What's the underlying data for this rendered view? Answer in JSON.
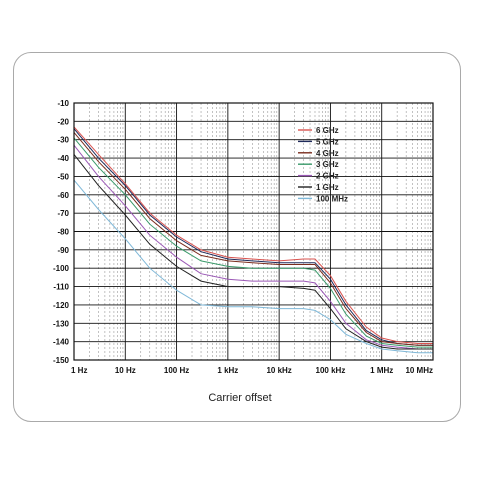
{
  "chart_data": {
    "type": "line",
    "xlabel": "Carrier offset",
    "ylabel": "",
    "title": "",
    "x_scale": "log",
    "xlim_hz": [
      1,
      10000000
    ],
    "ylim": [
      -150,
      -10
    ],
    "x_ticks": [
      {
        "value": 1,
        "label": "1 Hz"
      },
      {
        "value": 10,
        "label": "10 Hz"
      },
      {
        "value": 100,
        "label": "100 Hz"
      },
      {
        "value": 1000,
        "label": "1 kHz"
      },
      {
        "value": 10000,
        "label": "10 kHz"
      },
      {
        "value": 100000,
        "label": "100 kHz"
      },
      {
        "value": 1000000,
        "label": "1 MHz"
      },
      {
        "value": 10000000,
        "label": "10 MHz"
      }
    ],
    "y_ticks": [
      {
        "value": -10,
        "label": "-10"
      },
      {
        "value": -20,
        "label": "-20"
      },
      {
        "value": -30,
        "label": "-30"
      },
      {
        "value": -40,
        "label": "-40"
      },
      {
        "value": -50,
        "label": "-50"
      },
      {
        "value": -60,
        "label": "-60"
      },
      {
        "value": -70,
        "label": "-70"
      },
      {
        "value": -80,
        "label": "-80"
      },
      {
        "value": -90,
        "label": "-90"
      },
      {
        "value": -100,
        "label": "-100"
      },
      {
        "value": -110,
        "label": "-110"
      },
      {
        "value": -120,
        "label": "-120"
      },
      {
        "value": -130,
        "label": "-130"
      },
      {
        "value": -140,
        "label": "-140"
      },
      {
        "value": -150,
        "label": "-150"
      }
    ],
    "grid": true,
    "legend_position": "top-right",
    "series": [
      {
        "name": "6 GHz",
        "color": "#d9534f",
        "x": [
          1,
          3,
          10,
          30,
          100,
          300,
          1000,
          3000,
          10000,
          30000,
          50000,
          100000,
          200000,
          500000,
          1000000,
          2000000,
          5000000,
          10000000
        ],
        "y": [
          -23,
          -38,
          -54,
          -70,
          -82,
          -90,
          -94,
          -95,
          -96,
          -95,
          -95,
          -104,
          -118,
          -132,
          -138,
          -140,
          -141,
          -141
        ]
      },
      {
        "name": "5 GHz",
        "color": "#1f2a5a",
        "x": [
          1,
          3,
          10,
          30,
          100,
          300,
          1000,
          3000,
          10000,
          30000,
          50000,
          100000,
          200000,
          500000,
          1000000,
          2000000,
          5000000,
          10000000
        ],
        "y": [
          -24,
          -40,
          -55,
          -71,
          -83,
          -91,
          -95,
          -96,
          -97,
          -97,
          -97,
          -106,
          -120,
          -134,
          -139,
          -141,
          -142,
          -142
        ]
      },
      {
        "name": "4 GHz",
        "color": "#7b2d1e",
        "x": [
          1,
          3,
          10,
          30,
          100,
          300,
          1000,
          3000,
          10000,
          30000,
          50000,
          100000,
          200000,
          500000,
          1000000,
          2000000,
          5000000,
          10000000
        ],
        "y": [
          -26,
          -42,
          -57,
          -73,
          -85,
          -93,
          -96,
          -97,
          -98,
          -98,
          -98,
          -108,
          -122,
          -135,
          -140,
          -141,
          -142,
          -142
        ]
      },
      {
        "name": "3 GHz",
        "color": "#3a9a6a",
        "x": [
          1,
          3,
          10,
          30,
          100,
          300,
          1000,
          3000,
          10000,
          30000,
          50000,
          100000,
          200000,
          500000,
          1000000,
          2000000,
          5000000,
          10000000
        ],
        "y": [
          -29,
          -45,
          -60,
          -76,
          -88,
          -96,
          -99,
          -100,
          -100,
          -100,
          -101,
          -111,
          -125,
          -137,
          -141,
          -142,
          -143,
          -143
        ]
      },
      {
        "name": "2 GHz",
        "color": "#9b59b6",
        "x": [
          1,
          3,
          10,
          30,
          100,
          300,
          1000,
          3000,
          10000,
          30000,
          50000,
          100000,
          200000,
          500000,
          1000000,
          2000000,
          5000000,
          10000000
        ],
        "y": [
          -33,
          -50,
          -66,
          -82,
          -94,
          -103,
          -106,
          -107,
          -107,
          -107,
          -108,
          -118,
          -130,
          -139,
          -142,
          -143,
          -144,
          -144
        ]
      },
      {
        "name": "1 GHz",
        "color": "#222222",
        "x": [
          1,
          3,
          10,
          30,
          100,
          300,
          1000,
          3000,
          10000,
          30000,
          50000,
          100000,
          200000,
          500000,
          1000000,
          2000000,
          5000000,
          10000000
        ],
        "y": [
          -38,
          -55,
          -71,
          -87,
          -99,
          -107,
          -110,
          -110,
          -110,
          -111,
          -112,
          -122,
          -133,
          -140,
          -143,
          -144,
          -144,
          -144
        ]
      },
      {
        "name": "100 MHz",
        "color": "#7fb8d8",
        "x": [
          1,
          3,
          10,
          30,
          100,
          300,
          1000,
          3000,
          10000,
          30000,
          50000,
          100000,
          200000,
          500000,
          1000000,
          2000000,
          5000000,
          10000000
        ],
        "y": [
          -52,
          -68,
          -84,
          -100,
          -112,
          -120,
          -121,
          -121,
          -122,
          -122,
          -123,
          -128,
          -136,
          -141,
          -144,
          -145,
          -146,
          -146
        ]
      }
    ]
  }
}
